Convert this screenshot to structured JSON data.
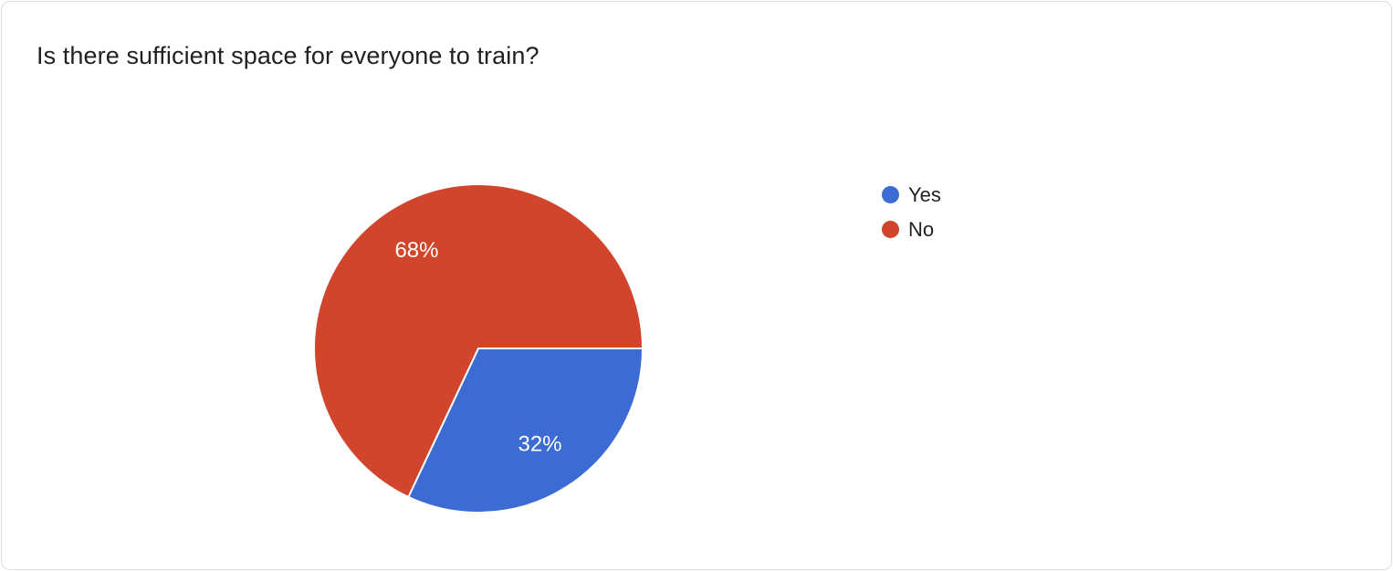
{
  "chart_data": {
    "type": "pie",
    "title": "Is there sufficient space for everyone to train?",
    "categories": [
      "Yes",
      "No"
    ],
    "values": [
      32,
      68
    ],
    "value_labels": [
      "32%",
      "68%"
    ],
    "colors": [
      "#3c6bd4",
      "#d0452b"
    ],
    "label_color": "#ffffff",
    "legend_position": "right",
    "start_angle_deg": 0,
    "direction": "clockwise",
    "units": "percent"
  }
}
